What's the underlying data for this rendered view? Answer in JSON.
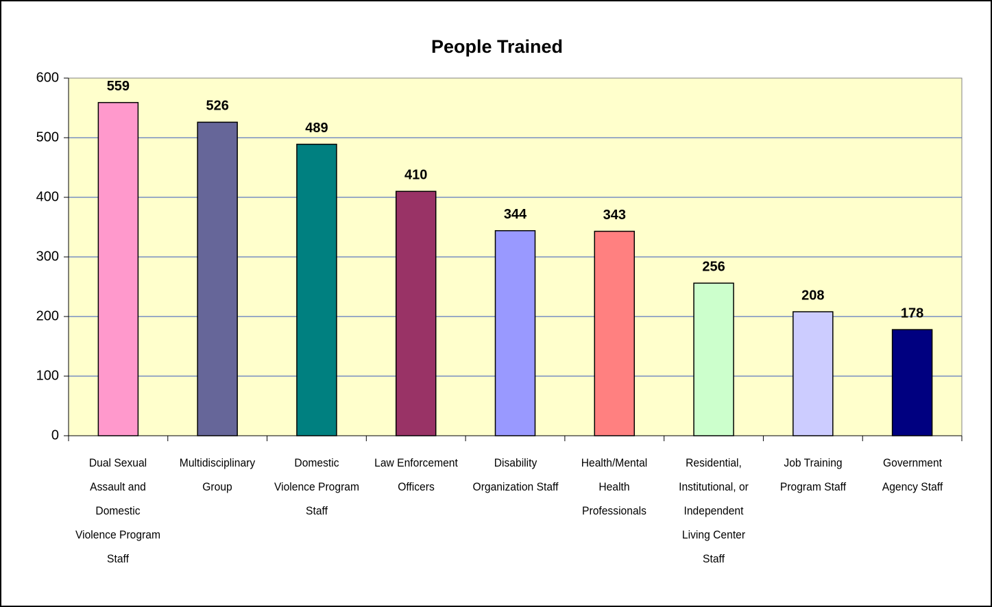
{
  "chart_data": {
    "type": "bar",
    "title": "People Trained",
    "categories": [
      "Dual Sexual Assault and Domestic Violence Program Staff",
      "Multidisciplinary Group",
      "Domestic Violence Program Staff",
      "Law Enforcement Officers",
      "Disability Organization Staff",
      "Health/Mental Health Professionals",
      "Residential, Institutional, or Independent Living Center Staff",
      "Job Training Program Staff",
      "Government Agency Staff"
    ],
    "values": [
      559,
      526,
      489,
      410,
      344,
      343,
      256,
      208,
      178
    ],
    "colors": [
      "#ff99cc",
      "#666699",
      "#008080",
      "#993366",
      "#9999ff",
      "#ff8080",
      "#ccffcc",
      "#ccccff",
      "#000080"
    ],
    "ylim": [
      0,
      600
    ],
    "yticks": [
      0,
      100,
      200,
      300,
      400,
      500,
      600
    ],
    "grid": true,
    "plot_background": "#ffffcc"
  }
}
